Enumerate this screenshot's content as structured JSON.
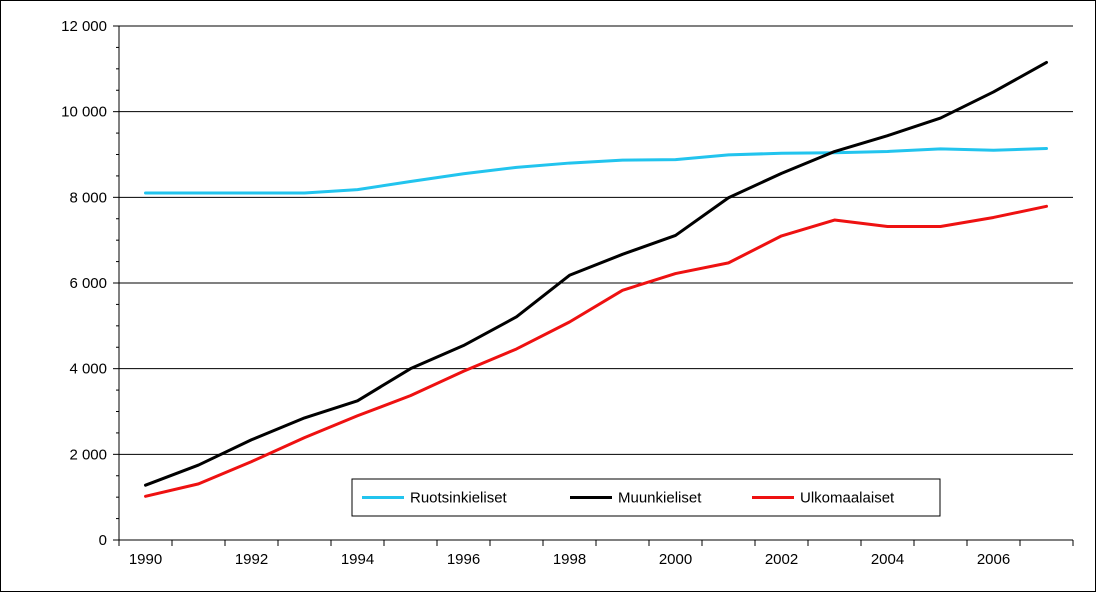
{
  "chart_data": {
    "type": "line",
    "x": [
      1990,
      1991,
      1992,
      1993,
      1994,
      1995,
      1996,
      1997,
      1998,
      1999,
      2000,
      2001,
      2002,
      2003,
      2004,
      2005,
      2006,
      2007
    ],
    "xticks": [
      1990,
      1992,
      1994,
      1996,
      1998,
      2000,
      2002,
      2004,
      2006
    ],
    "xtick_labels": [
      "1990",
      "1992",
      "1994",
      "1996",
      "1998",
      "2000",
      "2002",
      "2004",
      "2006"
    ],
    "yticks": [
      0,
      2000,
      4000,
      6000,
      8000,
      10000,
      12000
    ],
    "ytick_labels": [
      "0",
      "2 000",
      "4 000",
      "6 000",
      "8 000",
      "10 000",
      "12 000"
    ],
    "ylim": [
      0,
      12000
    ],
    "grid": "horizontal",
    "legend_position": "bottom-center",
    "series": [
      {
        "name": "Ruotsinkieliset",
        "color": "#22c4ee",
        "values": [
          8100,
          8100,
          8100,
          8100,
          8180,
          8370,
          8550,
          8700,
          8800,
          8870,
          8880,
          8990,
          9030,
          9040,
          9070,
          9130,
          9100,
          9140
        ]
      },
      {
        "name": "Muunkieliset",
        "color": "#000000",
        "values": [
          1280,
          1750,
          2340,
          2850,
          3250,
          4000,
          4540,
          5210,
          6180,
          6670,
          7110,
          7990,
          8560,
          9070,
          9440,
          9850,
          10460,
          11150
        ]
      },
      {
        "name": "Ulkomaalaiset",
        "color": "#ee1111",
        "values": [
          1020,
          1310,
          1830,
          2390,
          2900,
          3370,
          3940,
          4460,
          5090,
          5830,
          6220,
          6470,
          7100,
          7470,
          7320,
          7320,
          7530,
          7790
        ]
      }
    ]
  }
}
